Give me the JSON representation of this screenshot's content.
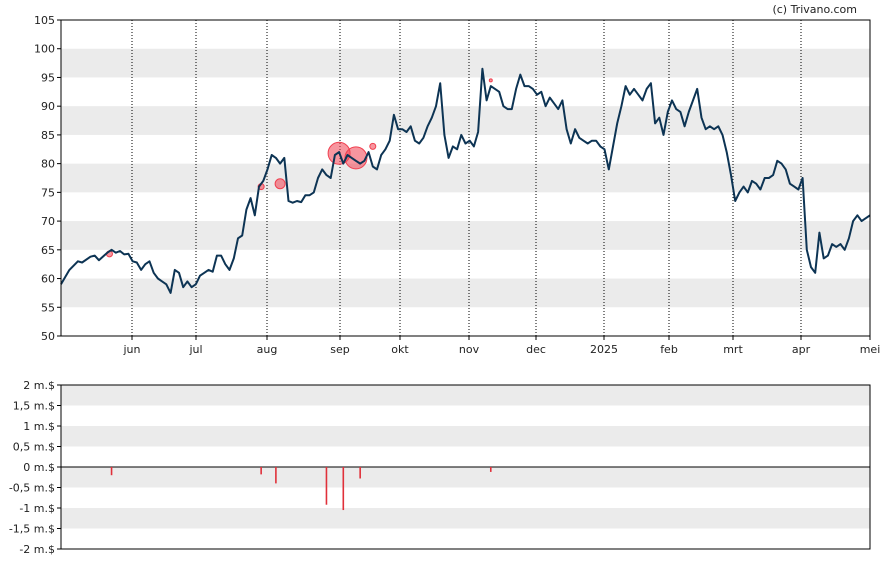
{
  "credit": "(c) Trivano.com",
  "colors": {
    "line": "#0d3454",
    "band": "#ebebeb",
    "bubble": "#f04050",
    "volume_bar": "#e0303a",
    "axis": "#000000"
  },
  "chart_data": [
    {
      "type": "line",
      "ylim": [
        50,
        105
      ],
      "y_ticks": [
        "50",
        "55",
        "60",
        "65",
        "70",
        "75",
        "80",
        "85",
        "90",
        "95",
        "100",
        "105"
      ],
      "x_ticks": [
        "jun",
        "jul",
        "aug",
        "sep",
        "okt",
        "nov",
        "dec",
        "2025",
        "feb",
        "mrt",
        "apr",
        "mei"
      ],
      "grid": "vertical dotted lines at month ticks, alternating horizontal bands",
      "series": [
        {
          "points": [
            [
              0,
              59
            ],
            [
              2,
              61.5
            ],
            [
              4,
              63
            ],
            [
              5,
              62.8
            ],
            [
              7,
              63.8
            ],
            [
              8,
              64
            ],
            [
              9,
              63.2
            ],
            [
              11,
              64.5
            ],
            [
              12,
              65
            ],
            [
              13,
              64.5
            ],
            [
              14,
              64.8
            ],
            [
              15,
              64.2
            ],
            [
              16,
              64.3
            ],
            [
              17,
              63
            ],
            [
              18,
              62.8
            ],
            [
              19,
              61.5
            ],
            [
              20,
              62.5
            ],
            [
              21,
              63
            ],
            [
              22,
              61
            ],
            [
              23,
              60
            ],
            [
              24,
              59.5
            ],
            [
              25,
              59
            ],
            [
              26,
              57.5
            ],
            [
              27,
              61.5
            ],
            [
              28,
              61
            ],
            [
              29,
              58.5
            ],
            [
              30,
              59.5
            ],
            [
              31,
              58.5
            ],
            [
              32,
              59
            ],
            [
              33,
              60.5
            ],
            [
              34,
              61
            ],
            [
              35,
              61.5
            ],
            [
              36,
              61.2
            ],
            [
              37,
              64
            ],
            [
              38,
              64
            ],
            [
              39,
              62.5
            ],
            [
              40,
              61.5
            ],
            [
              41,
              63.5
            ],
            [
              42,
              67
            ],
            [
              43,
              67.5
            ],
            [
              44,
              72
            ],
            [
              45,
              74
            ],
            [
              46,
              71
            ],
            [
              47,
              76
            ],
            [
              48,
              77
            ],
            [
              49,
              79
            ],
            [
              50,
              81.5
            ],
            [
              51,
              81
            ],
            [
              52,
              80
            ],
            [
              53,
              81
            ],
            [
              54,
              73.5
            ],
            [
              55,
              73.2
            ],
            [
              56,
              73.5
            ],
            [
              57,
              73.3
            ],
            [
              58,
              74.5
            ],
            [
              59,
              74.5
            ],
            [
              60,
              75
            ],
            [
              61,
              77.5
            ],
            [
              62,
              79
            ],
            [
              63,
              78
            ],
            [
              64,
              77.5
            ],
            [
              65,
              81.5
            ],
            [
              66,
              82
            ],
            [
              67,
              80
            ],
            [
              68,
              81.5
            ],
            [
              69,
              81
            ],
            [
              70,
              80.5
            ],
            [
              71,
              80
            ],
            [
              72,
              80.5
            ],
            [
              73,
              82
            ],
            [
              74,
              79.5
            ],
            [
              75,
              79
            ],
            [
              76,
              81.5
            ],
            [
              77,
              82.5
            ],
            [
              78,
              84
            ],
            [
              79,
              88.5
            ],
            [
              80,
              86
            ],
            [
              81,
              86
            ],
            [
              82,
              85.5
            ],
            [
              83,
              86.5
            ],
            [
              84,
              84
            ],
            [
              85,
              83.5
            ],
            [
              86,
              84.5
            ],
            [
              87,
              86.5
            ],
            [
              88,
              88
            ],
            [
              89,
              90
            ],
            [
              90,
              94
            ],
            [
              91,
              85
            ],
            [
              92,
              81
            ],
            [
              93,
              83
            ],
            [
              94,
              82.5
            ],
            [
              95,
              85
            ],
            [
              96,
              83.5
            ],
            [
              97,
              84
            ],
            [
              98,
              83
            ],
            [
              99,
              85.5
            ],
            [
              100,
              96.5
            ],
            [
              101,
              91
            ],
            [
              102,
              93.5
            ],
            [
              103,
              93
            ],
            [
              104,
              92.5
            ],
            [
              105,
              90
            ],
            [
              106,
              89.5
            ],
            [
              107,
              89.5
            ],
            [
              108,
              93
            ],
            [
              109,
              95.5
            ],
            [
              110,
              93.5
            ],
            [
              111,
              93.5
            ],
            [
              112,
              93
            ],
            [
              113,
              92
            ],
            [
              114,
              92.5
            ],
            [
              115,
              90
            ],
            [
              116,
              91.5
            ],
            [
              117,
              90.5
            ],
            [
              118,
              89.5
            ],
            [
              119,
              91
            ],
            [
              120,
              86
            ],
            [
              121,
              83.5
            ],
            [
              122,
              86
            ],
            [
              123,
              84.5
            ],
            [
              124,
              84
            ],
            [
              125,
              83.5
            ],
            [
              126,
              84
            ],
            [
              127,
              84
            ],
            [
              128,
              83
            ],
            [
              129,
              82.5
            ],
            [
              130,
              79
            ],
            [
              131,
              83
            ],
            [
              132,
              87
            ],
            [
              133,
              90
            ],
            [
              134,
              93.5
            ],
            [
              135,
              92
            ],
            [
              136,
              93
            ],
            [
              137,
              92
            ],
            [
              138,
              91
            ],
            [
              139,
              93
            ],
            [
              140,
              94
            ],
            [
              141,
              87
            ],
            [
              142,
              88
            ],
            [
              143,
              85
            ],
            [
              144,
              89
            ],
            [
              145,
              91
            ],
            [
              146,
              89.5
            ],
            [
              147,
              89
            ],
            [
              148,
              86.5
            ],
            [
              149,
              89
            ],
            [
              150,
              91
            ],
            [
              151,
              93
            ],
            [
              152,
              88
            ],
            [
              153,
              86
            ],
            [
              154,
              86.5
            ],
            [
              155,
              86
            ],
            [
              156,
              86.5
            ],
            [
              157,
              85
            ],
            [
              158,
              82
            ],
            [
              159,
              78
            ],
            [
              160,
              73.5
            ],
            [
              161,
              75
            ],
            [
              162,
              76
            ],
            [
              163,
              75
            ],
            [
              164,
              77
            ],
            [
              165,
              76.5
            ],
            [
              166,
              75.5
            ],
            [
              167,
              77.5
            ],
            [
              168,
              77.5
            ],
            [
              169,
              78
            ],
            [
              170,
              80.5
            ],
            [
              171,
              80
            ],
            [
              172,
              79
            ],
            [
              173,
              76.5
            ],
            [
              174,
              76
            ],
            [
              175,
              75.5
            ],
            [
              176,
              77.5
            ],
            [
              177,
              65
            ],
            [
              178,
              62
            ],
            [
              179,
              61
            ],
            [
              180,
              68
            ],
            [
              181,
              63.5
            ],
            [
              182,
              64
            ],
            [
              183,
              66
            ],
            [
              184,
              65.5
            ],
            [
              185,
              66
            ],
            [
              186,
              65
            ],
            [
              187,
              67
            ],
            [
              188,
              70
            ],
            [
              189,
              71
            ],
            [
              190,
              70
            ],
            [
              191,
              70.5
            ],
            [
              192,
              71
            ]
          ]
        }
      ],
      "bubbles": [
        {
          "x": 11.5,
          "y": 64.3,
          "size": "small"
        },
        {
          "x": 47.5,
          "y": 76,
          "size": "small"
        },
        {
          "x": 52,
          "y": 76.5,
          "size": "medium"
        },
        {
          "x": 66,
          "y": 81.8,
          "size": "large"
        },
        {
          "x": 70,
          "y": 81,
          "size": "large"
        },
        {
          "x": 74,
          "y": 83,
          "size": "small"
        },
        {
          "x": 102,
          "y": 94.5,
          "size": "tiny"
        }
      ]
    },
    {
      "type": "bar",
      "ylim": [
        -2,
        2
      ],
      "y_ticks": [
        "-2 m.$",
        "-1,5 m.$",
        "-1 m.$",
        "-0,5 m.$",
        "0 m.$",
        "0,5 m.$",
        "1 m.$",
        "1,5 m.$",
        "2 m.$"
      ],
      "series": [
        {
          "points": [
            [
              12,
              -0.2
            ],
            [
              47.5,
              -0.18
            ],
            [
              51,
              -0.4
            ],
            [
              63,
              -0.92
            ],
            [
              67,
              -1.05
            ],
            [
              71,
              -0.28
            ],
            [
              102,
              -0.12
            ]
          ]
        }
      ]
    }
  ]
}
